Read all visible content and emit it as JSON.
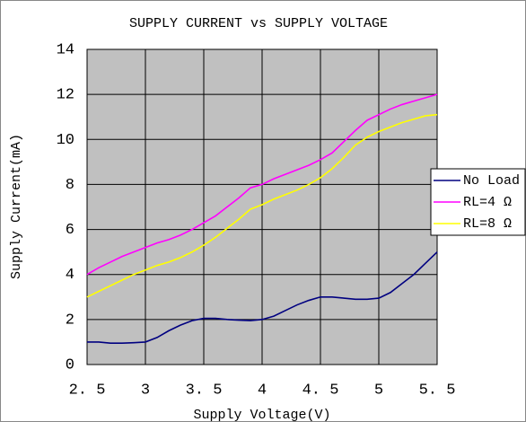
{
  "chart_data": {
    "type": "line",
    "title": "SUPPLY CURRENT vs SUPPLY VOLTAGE",
    "x_label": "Supply Voltage(V)",
    "y_label": "Supply Current(mA)",
    "x": [
      2.5,
      2.6,
      2.7,
      2.8,
      2.9,
      3.0,
      3.1,
      3.2,
      3.3,
      3.4,
      3.5,
      3.6,
      3.7,
      3.8,
      3.9,
      4.0,
      4.1,
      4.2,
      4.3,
      4.4,
      4.5,
      4.6,
      4.7,
      4.8,
      4.9,
      5.0,
      5.1,
      5.2,
      5.3,
      5.4,
      5.5
    ],
    "series": [
      {
        "name": "No Load",
        "color": "#000080",
        "values": [
          1.0,
          1.0,
          0.95,
          0.95,
          0.97,
          1.0,
          1.2,
          1.5,
          1.75,
          1.95,
          2.05,
          2.05,
          2.0,
          1.97,
          1.95,
          2.0,
          2.15,
          2.4,
          2.65,
          2.85,
          3.0,
          3.0,
          2.95,
          2.9,
          2.9,
          2.95,
          3.2,
          3.6,
          4.0,
          4.5,
          5.0
        ]
      },
      {
        "name": "RL=4 Ω",
        "color": "#ff00ff",
        "values": [
          4.0,
          4.3,
          4.55,
          4.8,
          5.0,
          5.2,
          5.4,
          5.55,
          5.75,
          6.0,
          6.3,
          6.6,
          7.0,
          7.4,
          7.85,
          8.0,
          8.25,
          8.45,
          8.65,
          8.85,
          9.1,
          9.4,
          9.9,
          10.4,
          10.85,
          11.1,
          11.35,
          11.55,
          11.7,
          11.85,
          12.0
        ]
      },
      {
        "name": "RL=8 Ω",
        "color": "#ffff00",
        "values": [
          3.0,
          3.25,
          3.5,
          3.75,
          4.0,
          4.2,
          4.4,
          4.55,
          4.75,
          5.0,
          5.3,
          5.65,
          6.05,
          6.45,
          6.9,
          7.1,
          7.35,
          7.55,
          7.75,
          8.0,
          8.3,
          8.7,
          9.2,
          9.75,
          10.1,
          10.35,
          10.55,
          10.75,
          10.9,
          11.05,
          11.1
        ]
      }
    ],
    "xlim": [
      2.5,
      5.5
    ],
    "xticks": [
      {
        "value": 2.5,
        "label": "2. 5"
      },
      3,
      {
        "value": 3.5,
        "label": "3. 5"
      },
      4,
      {
        "value": 4.5,
        "label": "4. 5"
      },
      5,
      {
        "value": 5.5,
        "label": "5. 5"
      }
    ],
    "ylim": [
      0,
      14
    ],
    "yticks": [
      0,
      2,
      4,
      6,
      8,
      10,
      12,
      14
    ],
    "grid": true,
    "legend": "right"
  }
}
